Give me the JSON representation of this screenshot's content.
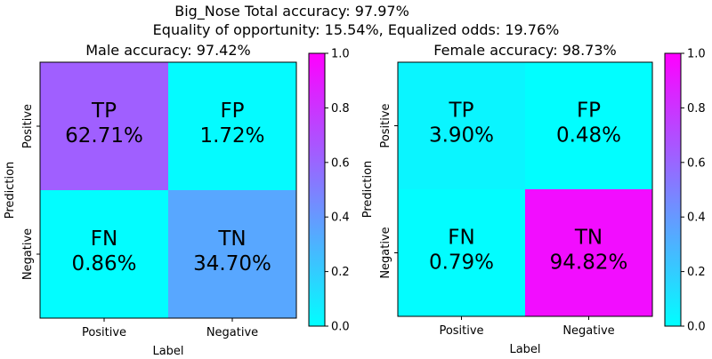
{
  "figure": {
    "title_line1": "Big_Nose    Total accuracy: 97.97%",
    "title_line2": "Equality of opportunity: 15.54%, Equalized odds: 19.76%"
  },
  "chart_data": [
    {
      "type": "heatmap",
      "title": "Male accuracy: 97.42%",
      "xlabel": "Label",
      "ylabel": "Prediction",
      "x_categories": [
        "Positive",
        "Negative"
      ],
      "y_categories": [
        "Positive",
        "Negative"
      ],
      "cells": [
        {
          "row": 0,
          "col": 0,
          "label": "TP",
          "text": "62.71%",
          "value": 0.6271
        },
        {
          "row": 0,
          "col": 1,
          "label": "FP",
          "text": "1.72%",
          "value": 0.0172
        },
        {
          "row": 1,
          "col": 0,
          "label": "FN",
          "text": "0.86%",
          "value": 0.0086
        },
        {
          "row": 1,
          "col": 1,
          "label": "TN",
          "text": "34.70%",
          "value": 0.347
        }
      ],
      "colorbar": {
        "range": [
          0,
          1
        ],
        "ticks": [
          "0.0",
          "0.2",
          "0.4",
          "0.6",
          "0.8",
          "1.0"
        ],
        "colormap": "cool"
      }
    },
    {
      "type": "heatmap",
      "title": "Female accuracy: 98.73%",
      "xlabel": "Label",
      "ylabel": "Prediction",
      "x_categories": [
        "Positive",
        "Negative"
      ],
      "y_categories": [
        "Positive",
        "Negative"
      ],
      "cells": [
        {
          "row": 0,
          "col": 0,
          "label": "TP",
          "text": "3.90%",
          "value": 0.039
        },
        {
          "row": 0,
          "col": 1,
          "label": "FP",
          "text": "0.48%",
          "value": 0.0048
        },
        {
          "row": 1,
          "col": 0,
          "label": "FN",
          "text": "0.79%",
          "value": 0.0079
        },
        {
          "row": 1,
          "col": 1,
          "label": "TN",
          "text": "94.82%",
          "value": 0.9482
        }
      ],
      "colorbar": {
        "range": [
          0,
          1
        ],
        "ticks": [
          "0.0",
          "0.2",
          "0.4",
          "0.6",
          "0.8",
          "1.0"
        ],
        "colormap": "cool"
      }
    }
  ]
}
